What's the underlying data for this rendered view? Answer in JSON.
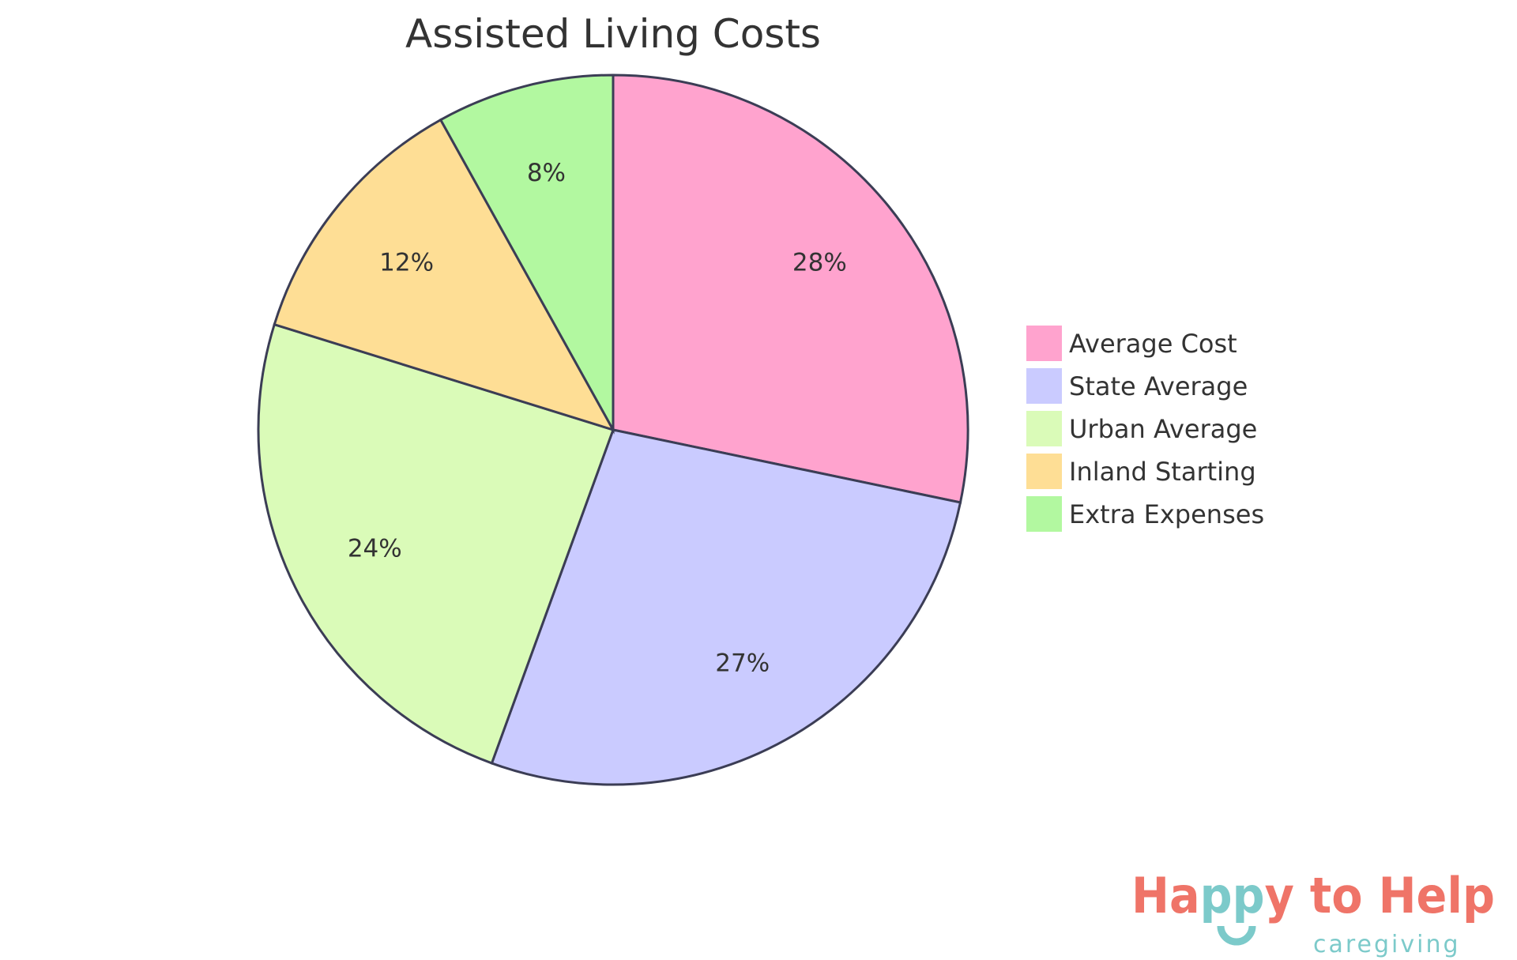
{
  "chart_data": {
    "type": "pie",
    "title": "Assisted Living Costs",
    "categories": [
      "Average Cost",
      "State Average",
      "Urban Average",
      "Inland Starting",
      "Extra Expenses"
    ],
    "values": [
      28,
      27,
      24,
      12,
      8
    ],
    "data_labels": [
      "28%",
      "27%",
      "24%",
      "12%",
      "8%"
    ],
    "colors": [
      "#FFA3CE",
      "#CACBFF",
      "#DAFBB8",
      "#FEDE95",
      "#B2F8A0"
    ],
    "stroke_color": "#3B3D55",
    "legend_position": "right"
  },
  "logo": {
    "text": "Happy to Help",
    "subtext": "caregiving",
    "colors": [
      "#EF7468",
      "#7CCACA"
    ]
  }
}
